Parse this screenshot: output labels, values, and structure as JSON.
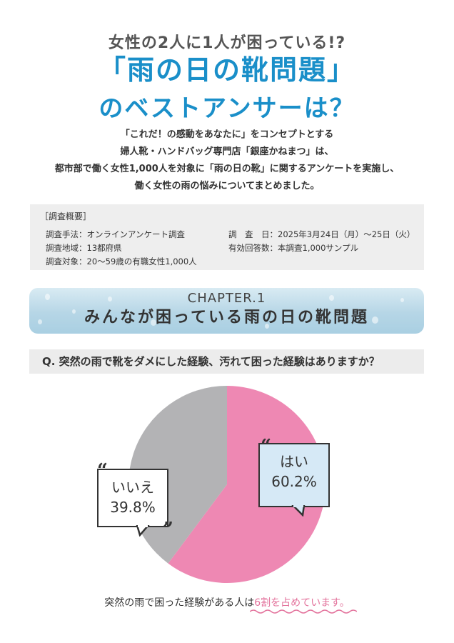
{
  "header": {
    "subtitle": "女性の2人に1人が困っている!?",
    "title_line1": "「雨の日の靴問題」",
    "title_line2": "のベストアンサーは？"
  },
  "intro": {
    "lines": [
      "「これだ！の感動をあなたに」をコンセプトとする",
      "婦人靴・ハンドバッグ専門店「銀座かねまつ」は、",
      "都市部で働く女性1,000人を対象に「雨の日の靴」に関するアンケートを実施し、",
      "働く女性の雨の悩みについてまとめました。"
    ]
  },
  "survey": {
    "title": "［調査概要］",
    "method": "調査手法：オンラインアンケート調査",
    "region": "調査地域：13都府県",
    "target": "調査対象：20〜59歳の有職女性1,000人",
    "date": "調　査　日：2025年3月24日（月）〜25日（火）",
    "responses": "有効回答数：本調査1,000サンプル"
  },
  "chapter": {
    "label": "CHAPTER.1",
    "title": "みんなが困っている雨の日の靴問題"
  },
  "question": "Q. 突然の雨で靴をダメにした経験、汚れて困った経験はありますか？",
  "footer": {
    "text": "突然の雨で困った経験がある人は",
    "highlight": "6割を占めています。"
  },
  "colors": {
    "accent": "#1a8fc9",
    "yes": "#ee88b3",
    "no": "#b3b3b5",
    "highlight": "#e3739c"
  },
  "chart_data": {
    "type": "pie",
    "title": "",
    "slices": [
      {
        "label": "はい",
        "value": 60.2,
        "value_label": "60.2%",
        "color": "#ee88b3"
      },
      {
        "label": "いいえ",
        "value": 39.8,
        "value_label": "39.8%",
        "color": "#b3b3b5"
      }
    ],
    "start": "top",
    "direction": "clockwise"
  }
}
